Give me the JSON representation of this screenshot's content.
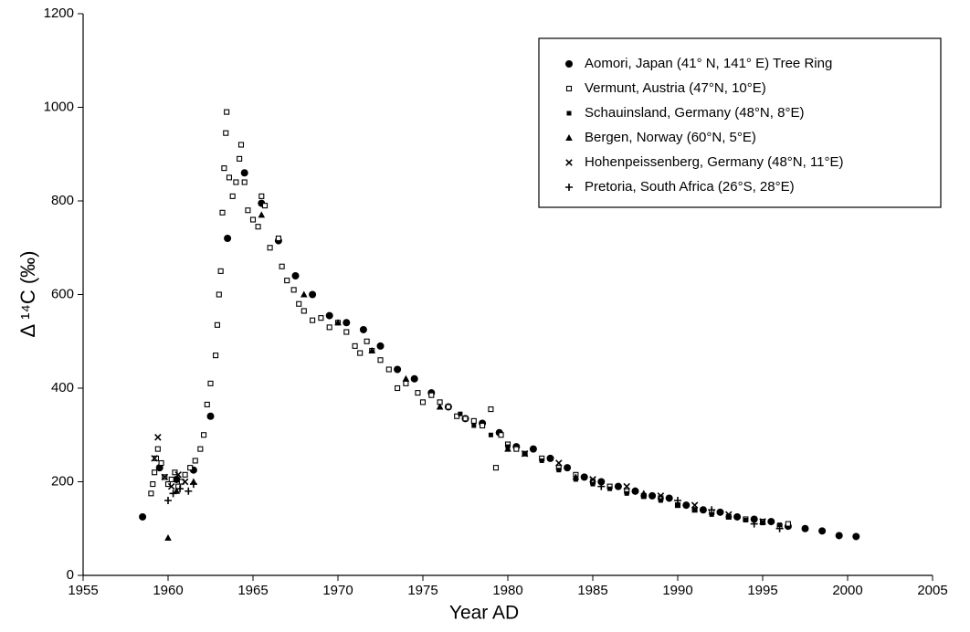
{
  "chart_data": {
    "type": "scatter",
    "x_label": "Year AD",
    "y_label": "Δ ¹⁴C (‰)",
    "xlim": [
      1955,
      2005
    ],
    "xticks": [
      1955,
      1960,
      1965,
      1970,
      1975,
      1980,
      1985,
      1990,
      1995,
      2000,
      2005
    ],
    "ylim": [
      0,
      1200
    ],
    "yticks": [
      0,
      200,
      400,
      600,
      800,
      1000,
      1200
    ],
    "legend": "upper right",
    "series": [
      {
        "name": "Aomori, Japan (41° N, 141° E)  Tree Ring",
        "marker": "circle",
        "color": "#000000",
        "x": [
          1958.5,
          1959.5,
          1960.5,
          1961.5,
          1962.5,
          1963.5,
          1964.5,
          1965.5,
          1966.5,
          1967.5,
          1968.5,
          1969.5,
          1970.5,
          1971.5,
          1972.5,
          1973.5,
          1974.5,
          1975.5,
          1976.5,
          1977.5,
          1978.5,
          1979.5,
          1980.5,
          1981.5,
          1982.5,
          1983.5,
          1984.5,
          1985.5,
          1986.5,
          1987.5,
          1988.5,
          1989.5,
          1990.5,
          1991.5,
          1992.5,
          1993.5,
          1994.5,
          1995.5,
          1996.5,
          1997.5,
          1998.5,
          1999.5,
          2000.5
        ],
        "y": [
          125,
          230,
          205,
          225,
          340,
          720,
          860,
          795,
          715,
          640,
          600,
          555,
          540,
          525,
          490,
          440,
          420,
          390,
          360,
          335,
          325,
          305,
          275,
          270,
          250,
          230,
          210,
          200,
          190,
          180,
          170,
          165,
          150,
          140,
          135,
          125,
          120,
          115,
          105,
          100,
          95,
          85,
          83
        ]
      },
      {
        "name": "Vermunt, Austria (47°N, 10°E)",
        "marker": "square-open",
        "color": "#000000",
        "x": [
          1959.0,
          1959.1,
          1959.2,
          1959.3,
          1959.4,
          1959.6,
          1959.8,
          1960.0,
          1960.2,
          1960.4,
          1960.6,
          1960.8,
          1961.0,
          1961.3,
          1961.6,
          1961.9,
          1962.1,
          1962.3,
          1962.5,
          1962.8,
          1962.9,
          1963.0,
          1963.1,
          1963.2,
          1963.3,
          1963.4,
          1963.45,
          1963.6,
          1963.8,
          1964.0,
          1964.2,
          1964.3,
          1964.5,
          1964.7,
          1965.0,
          1965.3,
          1965.5,
          1965.7,
          1966.0,
          1966.5,
          1966.7,
          1967.0,
          1967.4,
          1967.7,
          1968.0,
          1968.5,
          1969.0,
          1969.5,
          1970.0,
          1970.5,
          1971.0,
          1971.3,
          1971.7,
          1972.0,
          1972.5,
          1973.0,
          1973.5,
          1974.0,
          1974.7,
          1975.0,
          1975.5,
          1976.0,
          1976.5,
          1977.0,
          1977.5,
          1978.0,
          1978.5,
          1979.0,
          1979.3,
          1979.6,
          1980.0,
          1980.5,
          1981.0,
          1982.0,
          1983.0,
          1984.0,
          1985.0,
          1986.0,
          1987.0,
          1988.0,
          1989.0,
          1990.0,
          1991.0,
          1992.0,
          1993.0,
          1994.0,
          1995.0,
          1996.0,
          1996.5
        ],
        "y": [
          175,
          195,
          220,
          250,
          270,
          240,
          210,
          195,
          205,
          220,
          190,
          200,
          215,
          230,
          245,
          270,
          300,
          365,
          410,
          470,
          535,
          600,
          650,
          775,
          870,
          945,
          990,
          850,
          810,
          840,
          890,
          920,
          840,
          780,
          760,
          745,
          810,
          790,
          700,
          720,
          660,
          630,
          610,
          580,
          565,
          545,
          550,
          530,
          540,
          520,
          490,
          475,
          500,
          480,
          460,
          440,
          400,
          410,
          390,
          370,
          385,
          370,
          360,
          340,
          335,
          330,
          320,
          355,
          230,
          300,
          280,
          270,
          260,
          250,
          230,
          215,
          200,
          190,
          180,
          170,
          165,
          150,
          140,
          135,
          125,
          120,
          115,
          105,
          110
        ]
      },
      {
        "name": "Schauinsland, Germany (48°N, 8°E)",
        "marker": "square",
        "color": "#000000",
        "x": [
          1977.2,
          1978,
          1979,
          1980,
          1981,
          1982,
          1983,
          1984,
          1985,
          1986,
          1987,
          1988,
          1989,
          1990,
          1991,
          1992,
          1993,
          1994,
          1995,
          1996
        ],
        "y": [
          345,
          320,
          300,
          275,
          260,
          245,
          225,
          205,
          195,
          185,
          175,
          168,
          160,
          150,
          140,
          130,
          125,
          118,
          112,
          108
        ]
      },
      {
        "name": "Bergen, Norway (60°N, 5°E)",
        "marker": "triangle",
        "color": "#000000",
        "x": [
          1960.0,
          1960.5,
          1961.5,
          1965.5,
          1968,
          1970,
          1972,
          1974,
          1976,
          1980,
          1984,
          1988
        ],
        "y": [
          80,
          180,
          200,
          770,
          600,
          540,
          480,
          420,
          360,
          270,
          210,
          175
        ]
      },
      {
        "name": "Hohenpeissenberg, Germany (48°N, 11°E)",
        "marker": "x",
        "color": "#000000",
        "x": [
          1959.2,
          1959.4,
          1959.8,
          1960.2,
          1960.6,
          1961.0,
          1981,
          1983,
          1985,
          1987,
          1989,
          1991,
          1993,
          1995
        ],
        "y": [
          250,
          295,
          210,
          190,
          215,
          200,
          260,
          240,
          205,
          190,
          170,
          150,
          130,
          115
        ]
      },
      {
        "name": "Pretoria, South Africa (26°S, 28°E)",
        "marker": "plus",
        "color": "#000000",
        "x": [
          1960.0,
          1960.3,
          1960.7,
          1961.2,
          1961.5,
          1985.5,
          1987.5,
          1990,
          1992,
          1994.5,
          1996
        ],
        "y": [
          160,
          175,
          185,
          180,
          195,
          190,
          180,
          160,
          140,
          110,
          100
        ]
      }
    ]
  }
}
